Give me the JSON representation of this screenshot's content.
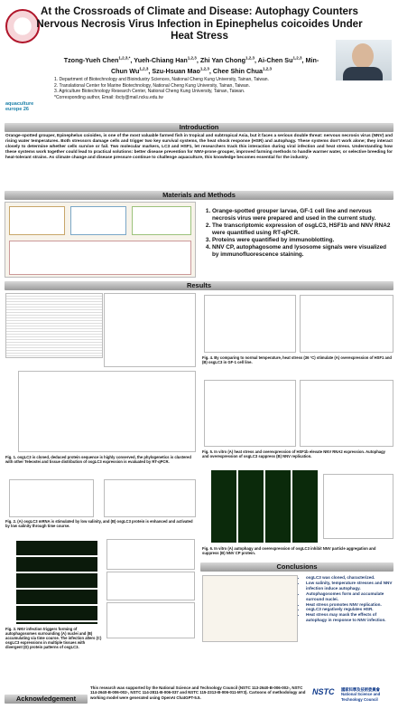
{
  "header": {
    "title": "At the Crossroads of Climate and Disease: Autophagy Counters Nervous Necrosis Virus Infection in Epinephelus coicoides Under Heat Stress",
    "authors": [
      {
        "name": "Tzong-Yueh Chen",
        "sup": "1,2,3,*"
      },
      {
        "name": "Yueh-Chiang Han",
        "sup": "1,2,3"
      },
      {
        "name": "Zhi Yan Chong",
        "sup": "1,2,3"
      },
      {
        "name": "Ai-Chen Su",
        "sup": "1,2,3"
      },
      {
        "name": "Min-Chun Wu",
        "sup": "1,2,3"
      },
      {
        "name": "Szu-Hsuan Mao",
        "sup": "1,2,3"
      },
      {
        "name": "Chee Shin Chua",
        "sup": "1,2,3"
      }
    ],
    "affiliations": [
      "1. Department of Biotechnology and Bioindustry Sciences, National Cheng Kung University, Tainan, Taiwan.",
      "2. Translational Center for Marine Biotechnology, National Cheng Kung University, Tainan, Taiwan.",
      "3. Agriculture Biotechnology Research Center, National Cheng Kung University, Tainan, Taiwan.",
      "*Corresponding author, Email: ibcty@mail.ncku.edu.tw"
    ],
    "conference_logo": "aquaculture europe 26"
  },
  "introduction": {
    "heading": "Introduction",
    "text": "Orange-spotted grouper, Epinephelus coioides, is one of the most valuable farmed fish in tropical and subtropical Asia, but it faces a serious double threat: nervous necrosis virus (NNV) and rising water temperatures. Both stressors damage cells and trigger two key survival systems, the heat shock response (HSR) and autophagy. These systems don't work alone; they interact closely to determine whether cells survive or fail. Two molecular markers, LC3 and HSF1, let researchers track this interaction during viral infection and heat stress. Understanding how these systems work together could lead to practical solutions: better disease prevention for NNV-prone grouper, improved farming methods to handle warmer water, or selective breeding for heat-tolerant strains. As climate change and disease pressure continue to challenge aquaculture, this knowledge becomes essential for the industry."
  },
  "methods": {
    "heading": "Materials and Methods",
    "items": [
      "Orange-spotted grouper larvae, GF-1 cell line and nervous necrosis virus were prepared and used in the current study.",
      "The transcriptomic expression of osgLC3, HSF1b and NNV RNA2 were quantified using RT-qPCR.",
      "Proteins were quantified by immunoblotting.",
      "NNV CP, autophagosome and lysosome signals were visualized by immunofluorescence staining."
    ]
  },
  "results": {
    "heading": "Results",
    "captions": [
      "Fig. 1. osgLC3 is cloned, deduced protein sequence is highly conserved, the phylogenetics is clustered with other Teleostei and tissue distribution of osgLC3 expression is evaluated by RT-qPCR.",
      "Fig. 2. (A) osgLC3 mRNA is stimulated by low salinity, and (B) osgLC3 protein is enhanced and activated by low salinity through time course.",
      "Fig. 3. NNV infection triggers forming of autophagosomes surrounding (A) nuclei and (B) accumulating via time course. The infection alters (C) osgLC3 expressions in multiple tissues with divergent (D) protein patterns of osgLC3.",
      "Fig. 4. By comparing to normal temperature, heat stress (36 °C) stimulate (A) overexpression of HSF1 and (B) osgLC3 in GF-1 cell line.",
      "Fig. 5. In vitro (A) heat stress and overexpression of HSF1b elevate NNV RNA2 expression. Autophagy and overexpression of osgLC3 suppress (B) NNV replication.",
      "Fig. 6. In vitro (A) autophagy and overexpression of osgLC3 inhibit NNV particle aggregation and suppress (B) NNV CP protein."
    ]
  },
  "conclusions": {
    "heading": "Conclusions",
    "items": [
      "osgLC3 was cloned, characterized.",
      "Low salinity, temperature stresses and NNV infection induce autophagy.",
      "Autophagosomes form and accumulate surround nuclei.",
      "Heat stress promotes NNV replication.",
      "osgLC3 negatively regulates HSR.",
      "Heat stress may mask the effects of autophagy in response to NNV infection."
    ]
  },
  "acknowledgement": {
    "heading": "Acknowledgement",
    "text": "This research was supported by the National Science and Technology Council (NSTC 113-2640-B-006-002-, NSTC 114-2640-B-006-002-, NSTC 114-2811-B-006-037 and NSTC 115-2313-B-006-011-MY3). Cartoons of methodology and working model were generated using OpenAI ChatGPT-5.5.",
    "logo": "NSTC",
    "logo_text": "國家科學及技術委員會 National Science and Technology Council"
  }
}
